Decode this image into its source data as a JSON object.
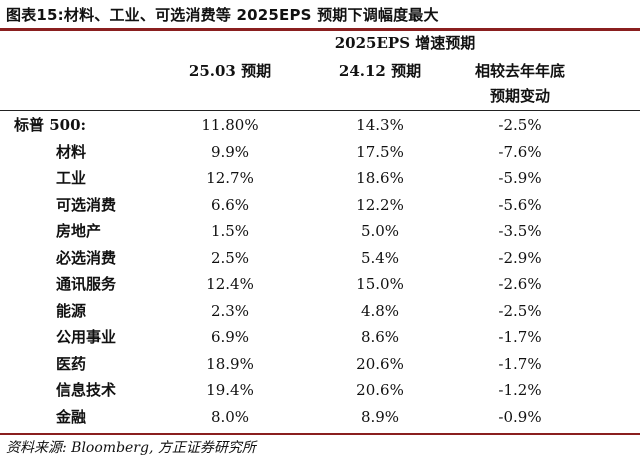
{
  "title": "图表15:材料、工业、可选消费等 2025EPS 预期下调幅度最大",
  "group_header": "2025EPS 增速预期",
  "columns": [
    "25.03 预期",
    "24.12 预期",
    "相较去年年底",
    "预期变动"
  ],
  "rows": [
    {
      "name": "标普 500:",
      "c1": "11.80%",
      "c2": "14.3%",
      "c3": "-2.5%"
    },
    {
      "name": "材料",
      "c1": "9.9%",
      "c2": "17.5%",
      "c3": "-7.6%"
    },
    {
      "name": "工业",
      "c1": "12.7%",
      "c2": "18.6%",
      "c3": "-5.9%"
    },
    {
      "name": "可选消费",
      "c1": "6.6%",
      "c2": "12.2%",
      "c3": "-5.6%"
    },
    {
      "name": "房地产",
      "c1": "1.5%",
      "c2": "5.0%",
      "c3": "-3.5%"
    },
    {
      "name": "必选消费",
      "c1": "2.5%",
      "c2": "5.4%",
      "c3": "-2.9%"
    },
    {
      "name": "通讯服务",
      "c1": "12.4%",
      "c2": "15.0%",
      "c3": "-2.6%"
    },
    {
      "name": "能源",
      "c1": "2.3%",
      "c2": "4.8%",
      "c3": "-2.5%"
    },
    {
      "name": "公用事业",
      "c1": "6.9%",
      "c2": "8.6%",
      "c3": "-1.7%"
    },
    {
      "name": "医药",
      "c1": "18.9%",
      "c2": "20.6%",
      "c3": "-1.7%"
    },
    {
      "name": "信息技术",
      "c1": "19.4%",
      "c2": "20.6%",
      "c3": "-1.2%"
    },
    {
      "name": "金融",
      "c1": "8.0%",
      "c2": "8.9%",
      "c3": "-0.9%"
    }
  ],
  "source": "资料来源: Bloomberg, 方正证券研究所",
  "colors": {
    "accent_rule": "#8a1f1f",
    "text": "#111111"
  }
}
